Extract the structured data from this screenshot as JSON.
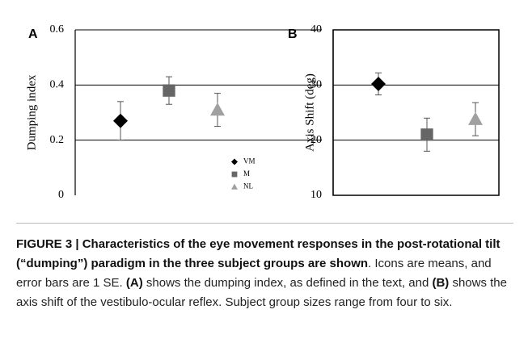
{
  "chart_data": [
    {
      "type": "scatter",
      "panel_label": "A",
      "ylabel": "Dumping index",
      "categories": [
        "VM",
        "M",
        "NL"
      ],
      "values": [
        0.27,
        0.38,
        0.31
      ],
      "errors": [
        0.07,
        0.05,
        0.06
      ],
      "colors": [
        "#000000",
        "#666666",
        "#a0a0a0"
      ],
      "markers": [
        "diamond",
        "square",
        "triangle"
      ],
      "ylim": [
        0,
        0.6
      ],
      "yticks": [
        0,
        0.2,
        0.4,
        0.6
      ],
      "grid": true,
      "box": false,
      "legend": "lower right"
    },
    {
      "type": "scatter",
      "panel_label": "B",
      "ylabel": "Axis Shift (deg)",
      "categories": [
        "VM",
        "M",
        "NL"
      ],
      "values": [
        30.2,
        21,
        23.8
      ],
      "errors": [
        2,
        3,
        3
      ],
      "colors": [
        "#000000",
        "#666666",
        "#a0a0a0"
      ],
      "markers": [
        "diamond",
        "square",
        "triangle"
      ],
      "ylim": [
        10,
        40
      ],
      "yticks": [
        10,
        20,
        30,
        40
      ],
      "grid": true,
      "box": true
    }
  ],
  "caption": [
    {
      "text": "FIGURE 3 | Characteristics of the eye movement responses in the post-rotational tilt (“dumping”) paradigm in the three subject groups are shown",
      "bold": true
    },
    {
      "text": ". Icons are means, and error bars are 1 SE. ",
      "bold": false
    },
    {
      "text": "(A)",
      "bold": true
    },
    {
      "text": " shows the dumping index, as defined in the text, and ",
      "bold": false
    },
    {
      "text": "(B)",
      "bold": true
    },
    {
      "text": " shows the axis shift of the vestibulo-ocular reflex. Subject group sizes range from four to six.",
      "bold": false
    }
  ]
}
